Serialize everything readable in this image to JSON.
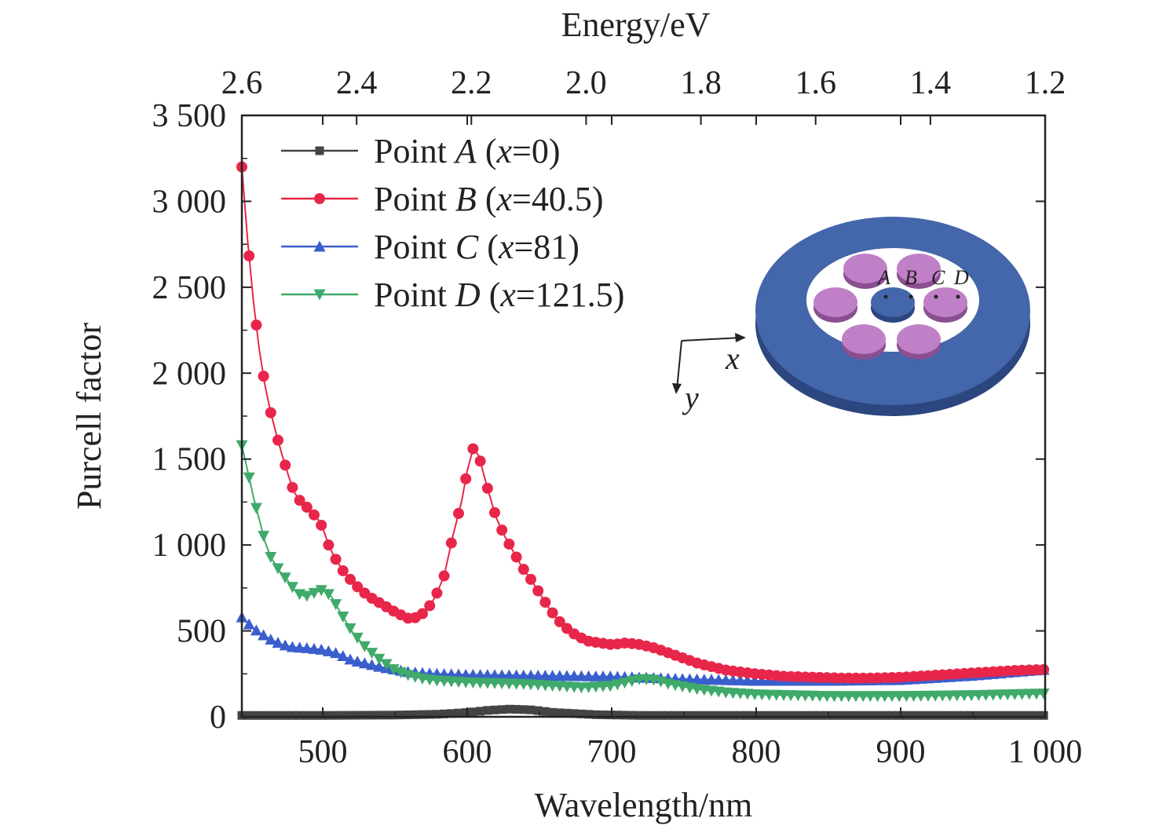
{
  "chart_data": {
    "type": "line",
    "xlabel": "Wavelength/nm",
    "ylabel": "Purcell factor",
    "top_xlabel": "Energy/eV",
    "xlim": [
      444,
      1000
    ],
    "ylim": [
      0,
      3500
    ],
    "x_ticks": [
      {
        "value": 500,
        "label": "500"
      },
      {
        "value": 600,
        "label": "600"
      },
      {
        "value": 700,
        "label": "700"
      },
      {
        "value": 800,
        "label": "800"
      },
      {
        "value": 900,
        "label": "900"
      },
      {
        "value": 1000,
        "label": "1 000"
      }
    ],
    "y_ticks": [
      {
        "value": 0,
        "label": "0"
      },
      {
        "value": 500,
        "label": "500"
      },
      {
        "value": 1000,
        "label": "1 000"
      },
      {
        "value": 1500,
        "label": "1 500"
      },
      {
        "value": 2000,
        "label": "2 000"
      },
      {
        "value": 2500,
        "label": "2 500"
      },
      {
        "value": 3000,
        "label": "3 000"
      },
      {
        "value": 3500,
        "label": "3 500"
      }
    ],
    "top_ticks": [
      {
        "value": 2.6,
        "label": "2.6"
      },
      {
        "value": 2.4,
        "label": "2.4"
      },
      {
        "value": 2.2,
        "label": "2.2"
      },
      {
        "value": 2.0,
        "label": "2.0"
      },
      {
        "value": 1.8,
        "label": "1.8"
      },
      {
        "value": 1.6,
        "label": "1.6"
      },
      {
        "value": 1.4,
        "label": "1.4"
      },
      {
        "value": 1.2,
        "label": "1.2"
      }
    ],
    "top_axis_note": "top axis linear in energy from 2.6 eV (left edge) to 1.2 eV (right edge)",
    "grid": false,
    "legend_position": "top-left",
    "series": [
      {
        "name_prefix": "Point ",
        "name_letter": "A",
        "name_suffix_open": " (",
        "name_var": "x",
        "name_suffix_close": "=0)",
        "color": "#444444",
        "marker": "square",
        "points": [
          [
            444,
            8
          ],
          [
            500,
            8
          ],
          [
            550,
            10
          ],
          [
            580,
            15
          ],
          [
            600,
            25
          ],
          [
            615,
            38
          ],
          [
            630,
            45
          ],
          [
            645,
            40
          ],
          [
            660,
            25
          ],
          [
            690,
            12
          ],
          [
            720,
            8
          ],
          [
            800,
            8
          ],
          [
            900,
            8
          ],
          [
            1000,
            8
          ]
        ]
      },
      {
        "name_prefix": "Point ",
        "name_letter": "B",
        "name_suffix_open": " (",
        "name_var": "x",
        "name_suffix_close": "=40.5)",
        "color": "#e8264a",
        "marker": "circle",
        "points": [
          [
            444,
            3200
          ],
          [
            448,
            2770
          ],
          [
            452,
            2420
          ],
          [
            456,
            2140
          ],
          [
            460,
            1930
          ],
          [
            464,
            1770
          ],
          [
            468,
            1640
          ],
          [
            472,
            1520
          ],
          [
            476,
            1410
          ],
          [
            480,
            1310
          ],
          [
            484,
            1260
          ],
          [
            488,
            1230
          ],
          [
            492,
            1190
          ],
          [
            496,
            1160
          ],
          [
            500,
            1100
          ],
          [
            504,
            1000
          ],
          [
            508,
            930
          ],
          [
            514,
            850
          ],
          [
            520,
            790
          ],
          [
            526,
            740
          ],
          [
            532,
            700
          ],
          [
            538,
            670
          ],
          [
            544,
            640
          ],
          [
            550,
            610
          ],
          [
            556,
            585
          ],
          [
            560,
            570
          ],
          [
            566,
            580
          ],
          [
            572,
            620
          ],
          [
            578,
            700
          ],
          [
            584,
            820
          ],
          [
            590,
            1050
          ],
          [
            596,
            1250
          ],
          [
            600,
            1430
          ],
          [
            604,
            1560
          ],
          [
            608,
            1520
          ],
          [
            614,
            1330
          ],
          [
            620,
            1160
          ],
          [
            626,
            1050
          ],
          [
            632,
            960
          ],
          [
            638,
            870
          ],
          [
            644,
            800
          ],
          [
            650,
            720
          ],
          [
            656,
            640
          ],
          [
            662,
            570
          ],
          [
            668,
            520
          ],
          [
            676,
            470
          ],
          [
            684,
            440
          ],
          [
            692,
            430
          ],
          [
            700,
            420
          ],
          [
            710,
            430
          ],
          [
            720,
            420
          ],
          [
            730,
            400
          ],
          [
            740,
            370
          ],
          [
            750,
            340
          ],
          [
            760,
            310
          ],
          [
            770,
            290
          ],
          [
            780,
            270
          ],
          [
            800,
            250
          ],
          [
            820,
            235
          ],
          [
            840,
            230
          ],
          [
            860,
            225
          ],
          [
            880,
            225
          ],
          [
            900,
            230
          ],
          [
            920,
            240
          ],
          [
            940,
            250
          ],
          [
            960,
            260
          ],
          [
            980,
            270
          ],
          [
            1000,
            275
          ]
        ]
      },
      {
        "name_prefix": "Point ",
        "name_letter": "C",
        "name_suffix_open": " (",
        "name_var": "x",
        "name_suffix_close": "=81)",
        "color": "#3a5fcd",
        "marker": "triangle-up",
        "points": [
          [
            444,
            580
          ],
          [
            450,
            530
          ],
          [
            456,
            490
          ],
          [
            464,
            450
          ],
          [
            472,
            420
          ],
          [
            480,
            405
          ],
          [
            490,
            400
          ],
          [
            500,
            390
          ],
          [
            510,
            370
          ],
          [
            520,
            330
          ],
          [
            540,
            290
          ],
          [
            560,
            260
          ],
          [
            580,
            250
          ],
          [
            600,
            245
          ],
          [
            650,
            240
          ],
          [
            700,
            235
          ],
          [
            750,
            220
          ],
          [
            800,
            210
          ],
          [
            850,
            210
          ],
          [
            900,
            215
          ],
          [
            950,
            240
          ],
          [
            1000,
            275
          ]
        ]
      },
      {
        "name_prefix": "Point ",
        "name_letter": "D",
        "name_suffix_open": " (",
        "name_var": "x",
        "name_suffix_close": "=121.5)",
        "color": "#3faa6a",
        "marker": "triangle-down",
        "points": [
          [
            444,
            1580
          ],
          [
            448,
            1430
          ],
          [
            452,
            1280
          ],
          [
            456,
            1150
          ],
          [
            460,
            1020
          ],
          [
            464,
            930
          ],
          [
            470,
            850
          ],
          [
            476,
            790
          ],
          [
            482,
            720
          ],
          [
            488,
            700
          ],
          [
            494,
            720
          ],
          [
            500,
            740
          ],
          [
            506,
            700
          ],
          [
            512,
            610
          ],
          [
            520,
            500
          ],
          [
            530,
            400
          ],
          [
            540,
            330
          ],
          [
            550,
            270
          ],
          [
            560,
            240
          ],
          [
            570,
            220
          ],
          [
            580,
            210
          ],
          [
            600,
            200
          ],
          [
            620,
            195
          ],
          [
            640,
            190
          ],
          [
            660,
            180
          ],
          [
            680,
            170
          ],
          [
            700,
            180
          ],
          [
            710,
            200
          ],
          [
            720,
            220
          ],
          [
            730,
            215
          ],
          [
            740,
            190
          ],
          [
            760,
            160
          ],
          [
            780,
            140
          ],
          [
            800,
            130
          ],
          [
            850,
            120
          ],
          [
            900,
            120
          ],
          [
            950,
            125
          ],
          [
            1000,
            135
          ]
        ]
      }
    ],
    "inset": {
      "axis_x_label": "x",
      "axis_y_label": "y",
      "point_labels": [
        "A",
        "B",
        "C",
        "D"
      ],
      "ring_color": "#4466aa",
      "disk_color": "#c080c8",
      "center_disk_color": "#4466aa"
    }
  }
}
